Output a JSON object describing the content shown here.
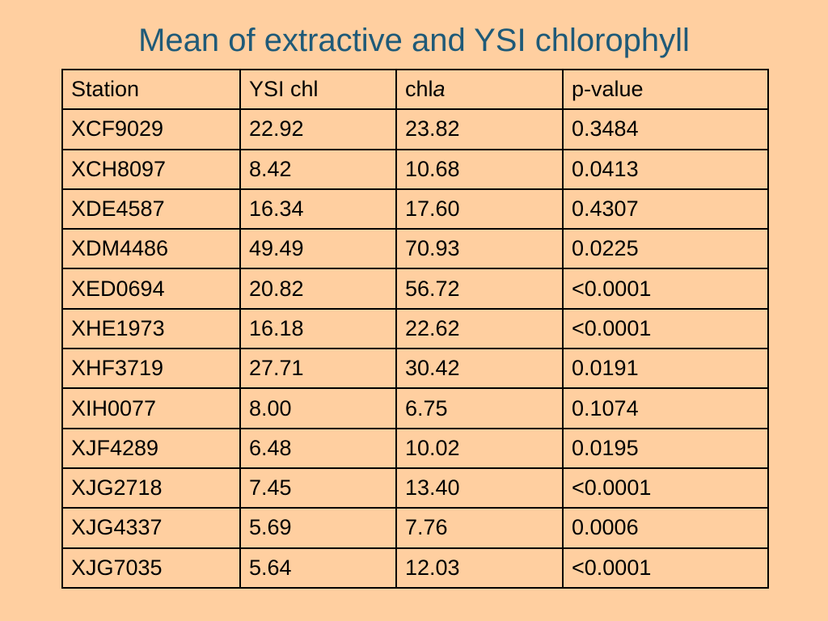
{
  "title": "Mean of extractive and YSI chlorophyll",
  "colors": {
    "background": "#FFCFA0",
    "title": "#1F5A78",
    "significant": "#F0524A",
    "highly_significant": "#E00000"
  },
  "table": {
    "headers": {
      "station": "Station",
      "ysi": "YSI chl",
      "chla_prefix": "chl",
      "chla_italic": "a",
      "pvalue": "p-value"
    },
    "rows": [
      {
        "station": "XCF9029",
        "ysi": "22.92",
        "chla": "23.82",
        "p": "0.3484",
        "level": "none"
      },
      {
        "station": "XCH8097",
        "ysi": "8.42",
        "chla": "10.68",
        "p": "0.0413",
        "level": "sig"
      },
      {
        "station": "XDE4587",
        "ysi": "16.34",
        "chla": "17.60",
        "p": "0.4307",
        "level": "none"
      },
      {
        "station": "XDM4486",
        "ysi": "49.49",
        "chla": "70.93",
        "p": "0.0225",
        "level": "sig"
      },
      {
        "station": "XED0694",
        "ysi": "20.82",
        "chla": "56.72",
        "p": "<0.0001",
        "level": "strong"
      },
      {
        "station": "XHE1973",
        "ysi": "16.18",
        "chla": "22.62",
        "p": "<0.0001",
        "level": "strong"
      },
      {
        "station": "XHF3719",
        "ysi": "27.71",
        "chla": "30.42",
        "p": "0.0191",
        "level": "sig"
      },
      {
        "station": "XIH0077",
        "ysi": "8.00",
        "chla": "6.75",
        "p": "0.1074",
        "level": "none"
      },
      {
        "station": "XJF4289",
        "ysi": "6.48",
        "chla": "10.02",
        "p": "0.0195",
        "level": "sig"
      },
      {
        "station": "XJG2718",
        "ysi": "7.45",
        "chla": "13.40",
        "p": "<0.0001",
        "level": "strong"
      },
      {
        "station": "XJG4337",
        "ysi": "5.69",
        "chla": "7.76",
        "p": "0.0006",
        "level": "strong"
      },
      {
        "station": "XJG7035",
        "ysi": "5.64",
        "chla": "12.03",
        "p": "<0.0001",
        "level": "strong"
      }
    ]
  }
}
